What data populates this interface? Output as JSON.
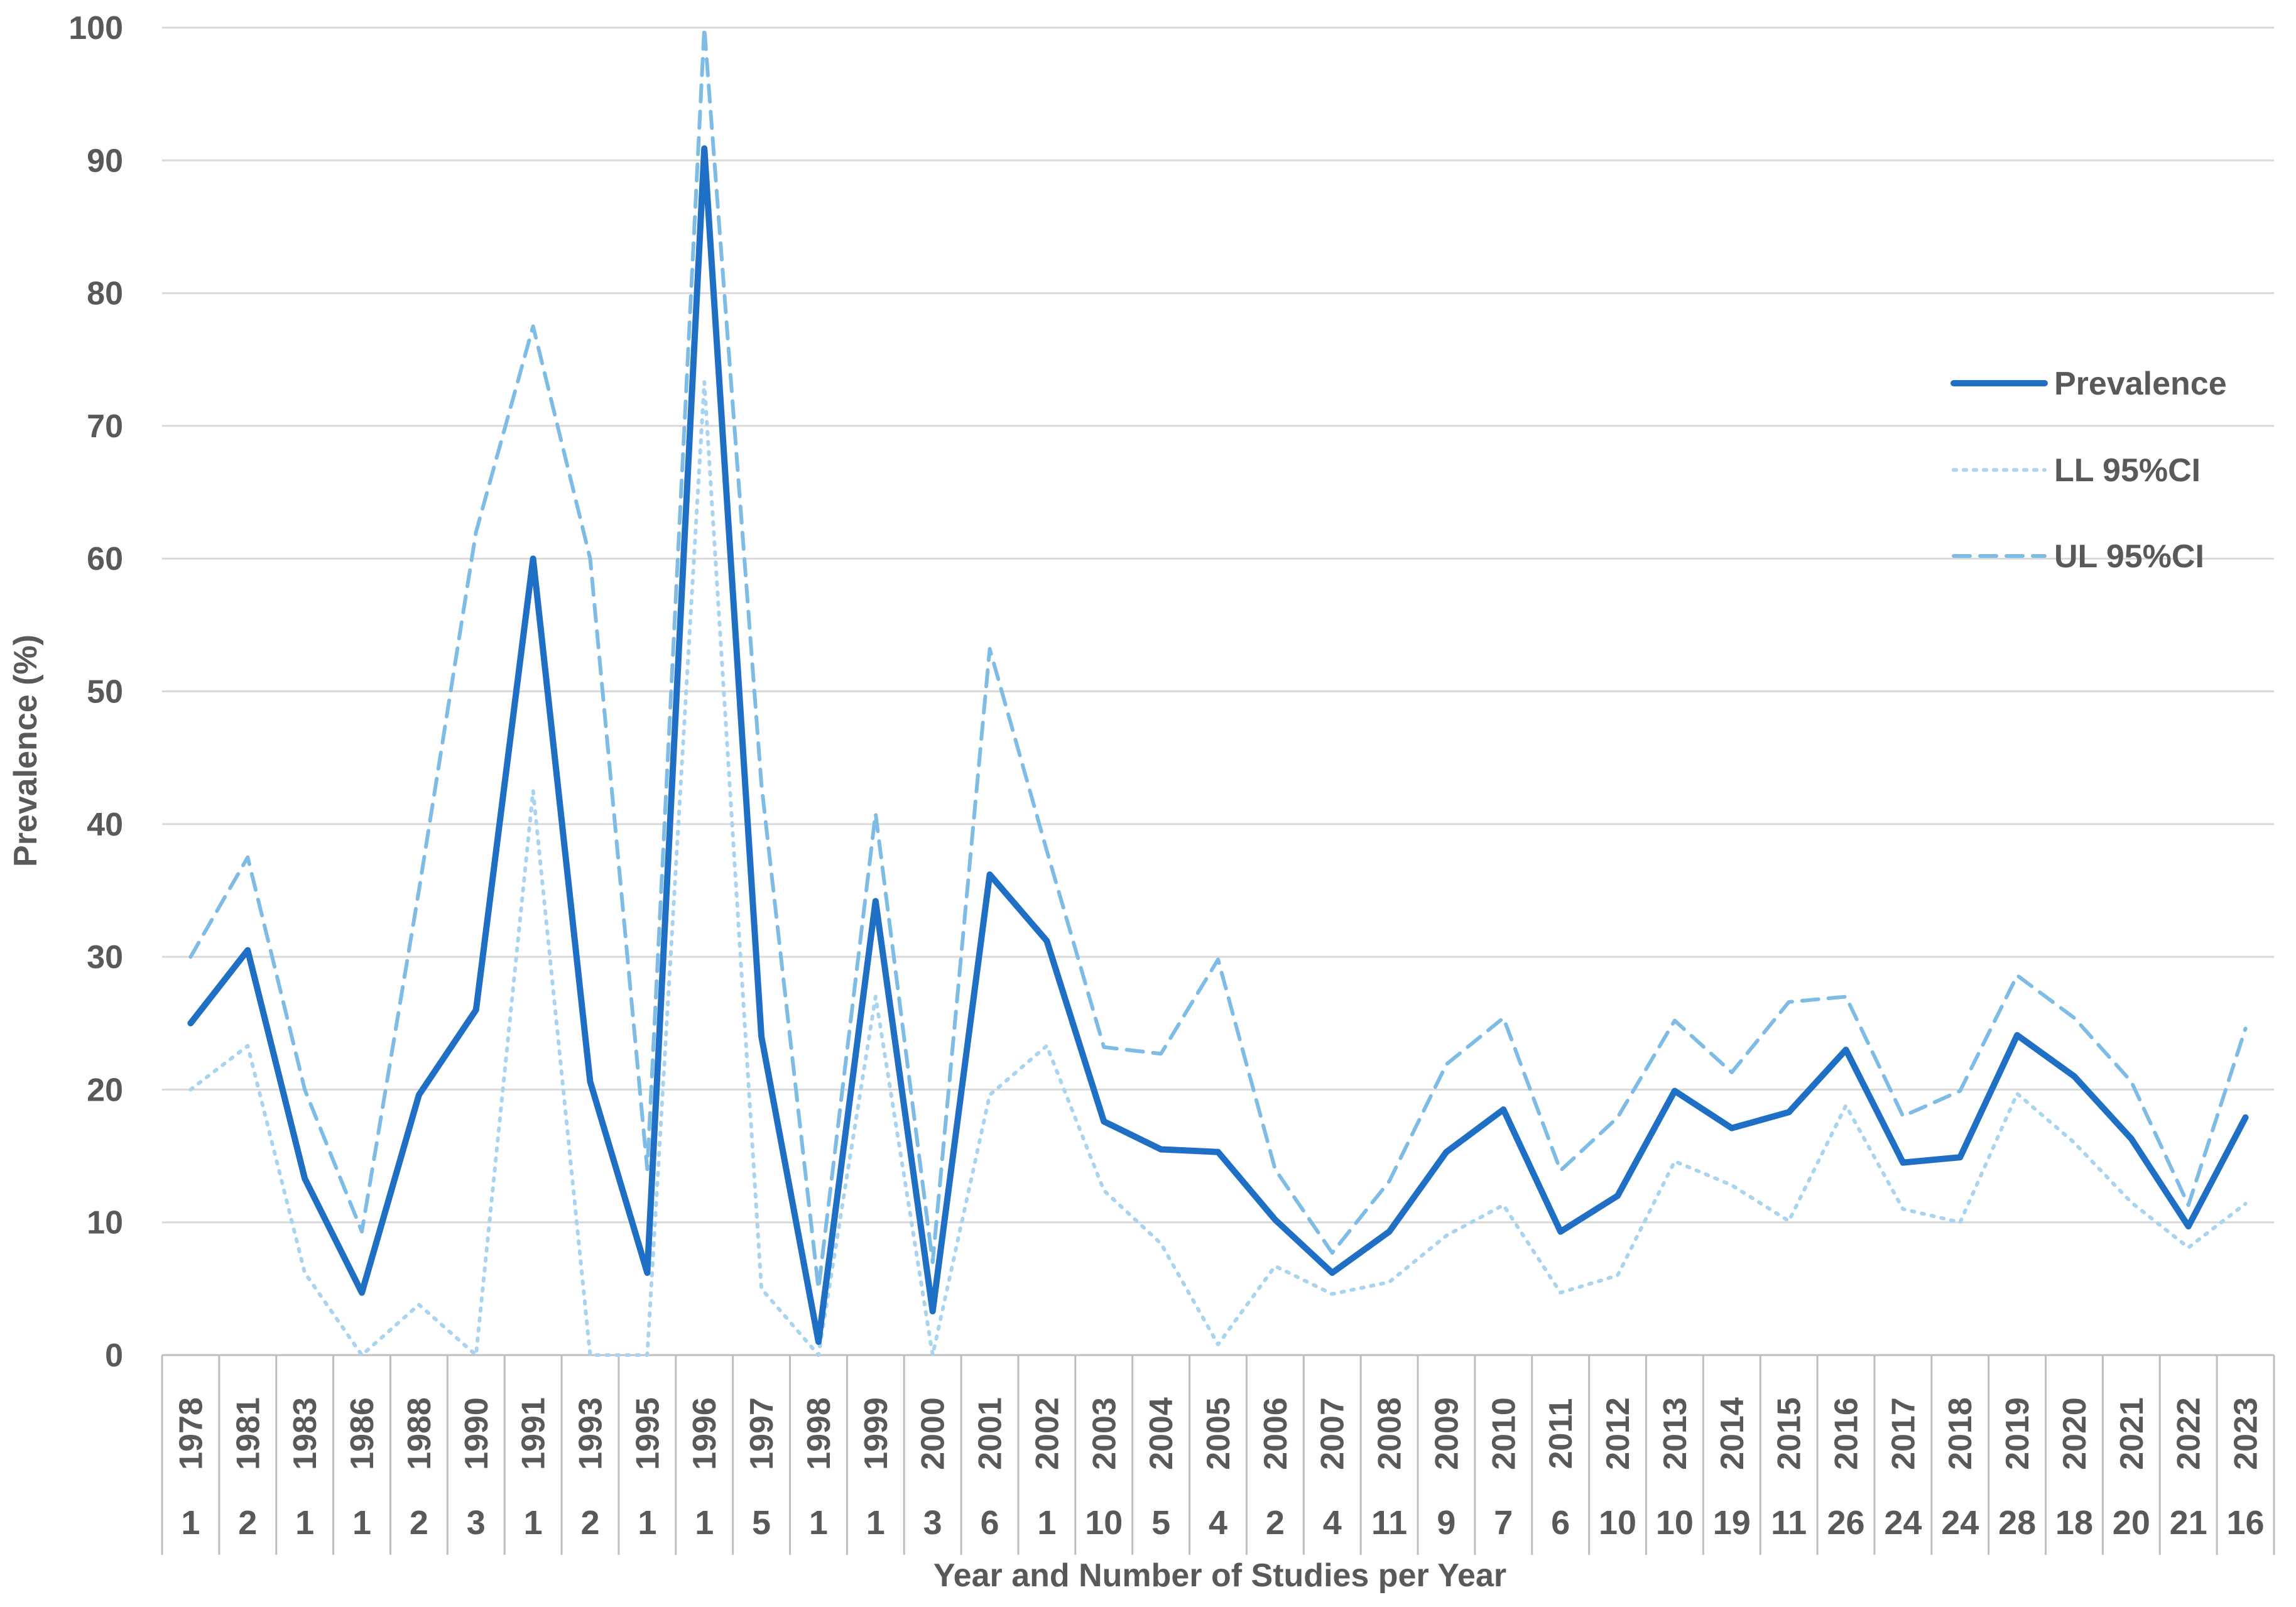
{
  "chart_data": {
    "type": "line",
    "ylabel": "Prevalence (%)",
    "xlabel": "Year and Number of Studies per Year",
    "ylim": [
      0,
      100
    ],
    "yticks": [
      0,
      10,
      20,
      30,
      40,
      50,
      60,
      70,
      80,
      90,
      100
    ],
    "grid": true,
    "legend_position": "right",
    "categories": [
      "1978",
      "1981",
      "1983",
      "1986",
      "1988",
      "1990",
      "1991",
      "1993",
      "1995",
      "1996",
      "1997",
      "1998",
      "1999",
      "2000",
      "2001",
      "2002",
      "2003",
      "2004",
      "2005",
      "2006",
      "2007",
      "2008",
      "2009",
      "2010",
      "2011",
      "2012",
      "2013",
      "2014",
      "2015",
      "2016",
      "2017",
      "2018",
      "2019",
      "2020",
      "2021",
      "2022",
      "2023"
    ],
    "studies_per_year": [
      "1",
      "2",
      "1",
      "1",
      "2",
      "3",
      "1",
      "2",
      "1",
      "1",
      "5",
      "1",
      "1",
      "3",
      "6",
      "1",
      "10",
      "5",
      "4",
      "2",
      "4",
      "11",
      "9",
      "7",
      "6",
      "10",
      "10",
      "19",
      "11",
      "26",
      "24",
      "24",
      "28",
      "18",
      "20",
      "21",
      "16"
    ],
    "series": [
      {
        "name": "Prevalence",
        "color": "#1f6fc5",
        "style": "solid",
        "values": [
          25.0,
          30.5,
          13.3,
          4.7,
          19.6,
          26.0,
          60.0,
          20.6,
          6.2,
          90.9,
          24.0,
          1.0,
          34.2,
          3.3,
          36.2,
          31.2,
          17.6,
          15.5,
          15.3,
          10.2,
          6.2,
          9.3,
          15.3,
          18.5,
          9.3,
          12.0,
          19.9,
          17.1,
          18.3,
          23.0,
          14.5,
          14.9,
          24.1,
          21.0,
          16.3,
          9.7,
          17.9
        ]
      },
      {
        "name": "LL 95%CI",
        "color": "#a9d4ef",
        "style": "dotted",
        "values": [
          20.0,
          23.3,
          6.2,
          0.0,
          3.8,
          0.0,
          42.5,
          0.0,
          0.0,
          73.3,
          5.0,
          0.0,
          27.0,
          0.0,
          19.6,
          23.3,
          12.4,
          8.4,
          0.8,
          6.7,
          4.6,
          5.5,
          9.0,
          11.3,
          4.7,
          6.0,
          14.6,
          12.8,
          10.1,
          18.8,
          11.0,
          10.0,
          19.7,
          16.0,
          11.5,
          8.1,
          11.4
        ]
      },
      {
        "name": "UL 95%CI",
        "color": "#7ebce6",
        "style": "dashed",
        "values": [
          30.0,
          37.5,
          20.0,
          9.3,
          35.0,
          62.0,
          77.5,
          60.0,
          14.0,
          100.0,
          43.0,
          5.0,
          40.8,
          7.0,
          53.2,
          38.0,
          23.2,
          22.7,
          29.8,
          14.0,
          7.7,
          13.1,
          21.9,
          25.4,
          13.9,
          17.9,
          25.2,
          21.3,
          26.6,
          27.0,
          18.0,
          19.9,
          28.6,
          25.4,
          20.6,
          11.3,
          24.6
        ]
      }
    ]
  }
}
